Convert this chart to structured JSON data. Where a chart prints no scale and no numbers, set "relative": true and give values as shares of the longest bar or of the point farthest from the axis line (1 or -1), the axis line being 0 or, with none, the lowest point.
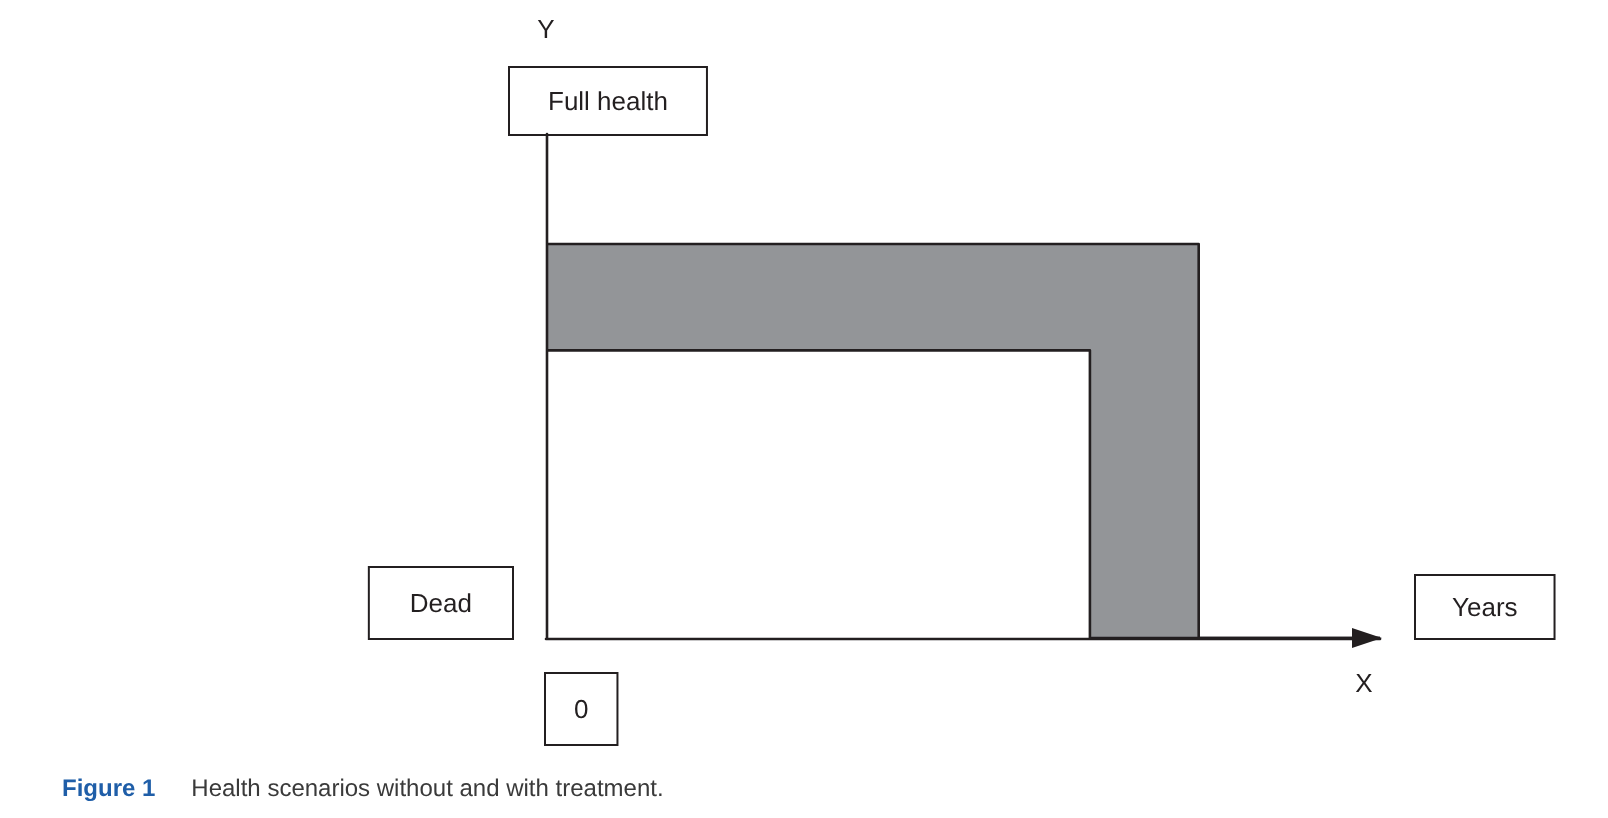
{
  "chart_data": {
    "type": "area",
    "title": "Figure 1",
    "subtitle": "Health scenarios without and with treatment.",
    "xlabel": "X",
    "annotations": [
      "Y",
      "Full health",
      "Dead",
      "0",
      "Years"
    ],
    "categories": [
      null,
      null,
      null,
      null,
      null,
      null,
      null,
      null,
      null,
      null,
      null,
      null,
      null,
      null,
      null,
      null,
      null,
      null,
      null,
      null,
      null,
      null,
      null,
      null
    ],
    "relative": true,
    "series": [
      {
        "color": "#939598",
        "values": [
          1,
          1,
          1,
          1,
          1,
          1,
          1,
          1,
          1,
          1,
          1,
          1,
          1,
          1,
          1,
          1,
          1,
          1,
          0,
          0,
          0,
          0,
          0,
          0
        ]
      },
      {
        "color": "#ffffff",
        "values": [
          0.73,
          0.73,
          0.73,
          0.73,
          0.73,
          0.73,
          0.73,
          0.73,
          0.73,
          0.73,
          0.73,
          0.73,
          0.73,
          0.73,
          0.73,
          0,
          0,
          0,
          0,
          0,
          0,
          0,
          0,
          0
        ]
      }
    ],
    "grid": false
  }
}
